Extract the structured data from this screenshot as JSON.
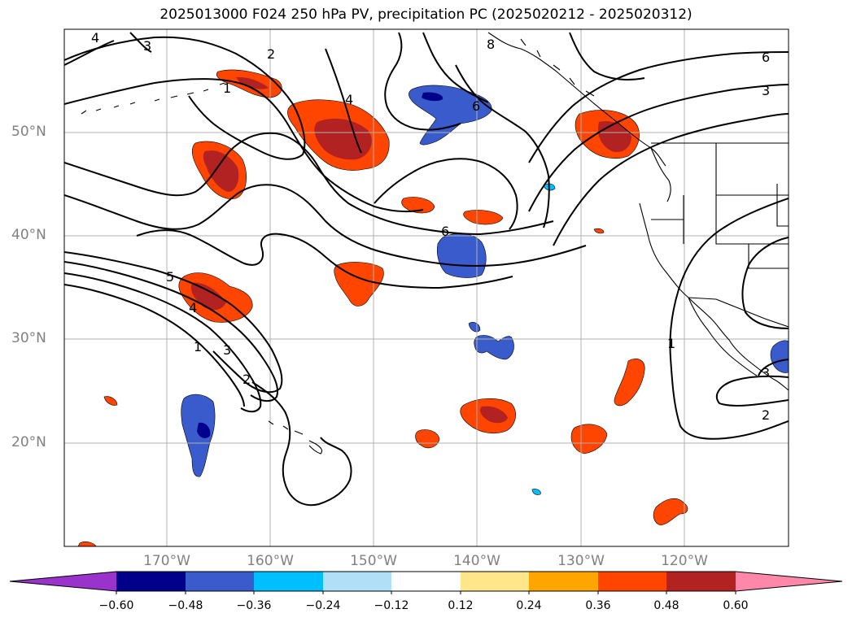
{
  "title": "2025013000 F024 250 hPa PV, precipitation PC (2025020212 - 2025020312)",
  "lat_labels": [
    "50°N",
    "40°N",
    "30°N",
    "20°N"
  ],
  "lon_labels": [
    "170°W",
    "160°W",
    "150°W",
    "140°W",
    "130°W",
    "120°W"
  ],
  "contour_labels": [
    "4",
    "3",
    "2",
    "1",
    "4",
    "8",
    "6",
    "6",
    "3",
    "5",
    "4",
    "1",
    "3",
    "2",
    "6",
    "1",
    "3",
    "2"
  ],
  "colorbar": {
    "ticks": [
      "−0.60",
      "−0.48",
      "−0.36",
      "−0.24",
      "−0.12",
      "0.12",
      "0.24",
      "0.36",
      "0.48",
      "0.60"
    ],
    "colors": [
      "#9933cc",
      "#00008b",
      "#3a5bcc",
      "#00bfff",
      "#b0e0f8",
      "#ffffff",
      "#ffe68a",
      "#ffa500",
      "#ff4500",
      "#b22222",
      "#ff88aa"
    ]
  },
  "colors": {
    "grid": "#b0b0b0",
    "contour": "#000000",
    "coast": "#000000"
  }
}
